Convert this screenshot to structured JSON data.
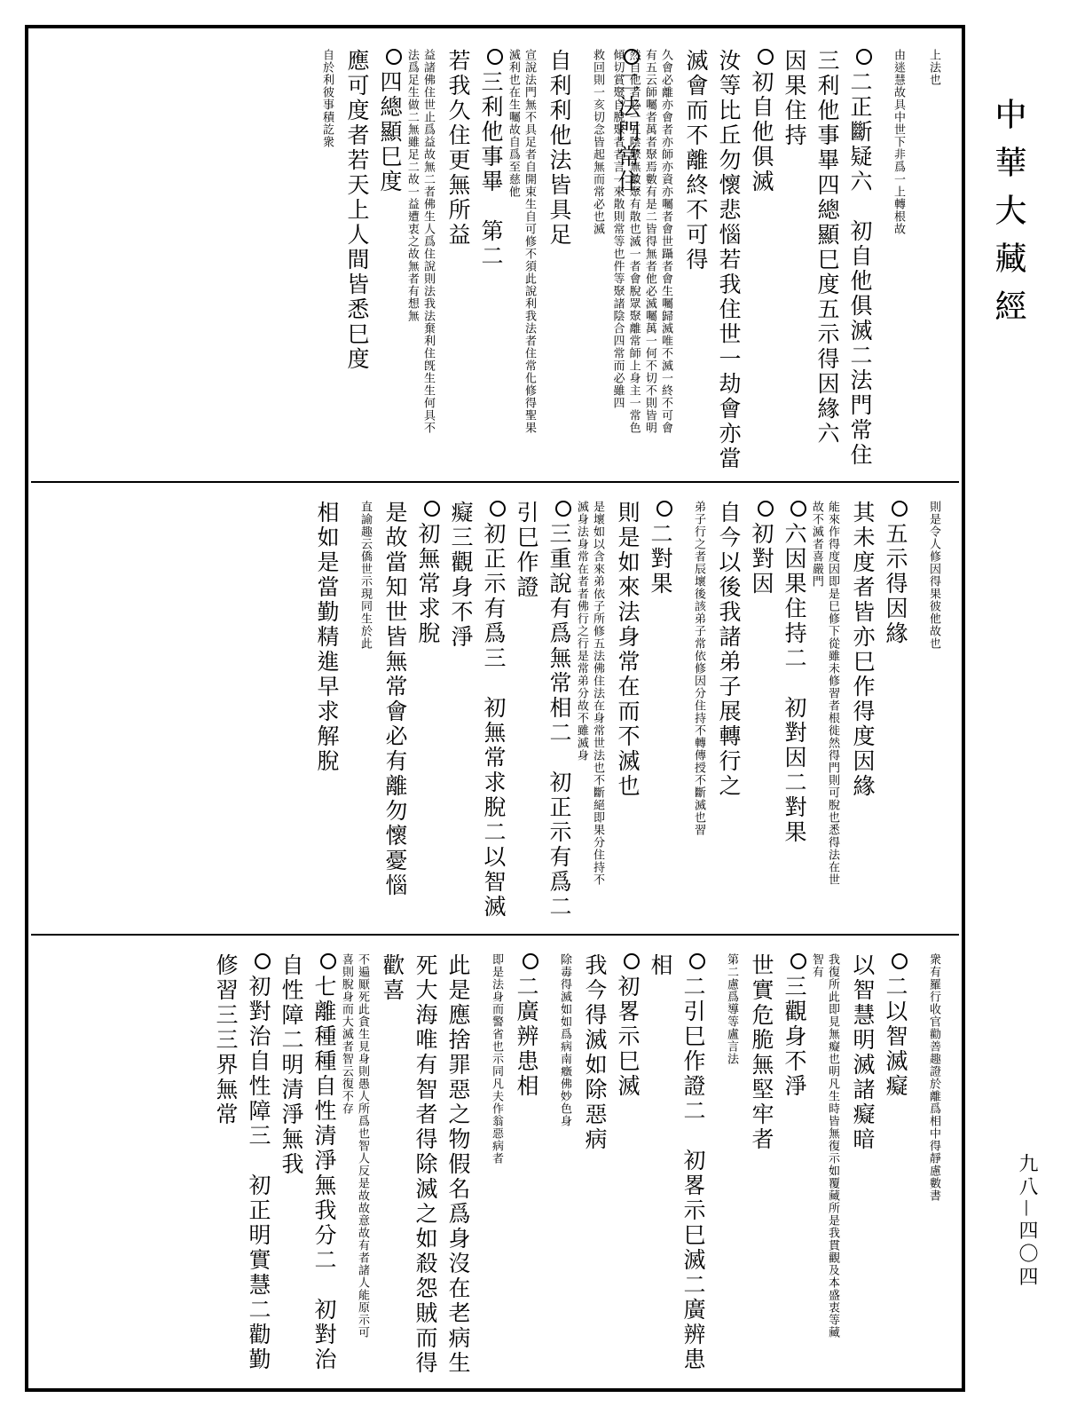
{
  "title": "中華大藏經",
  "page_number": "九八—四〇四",
  "rows": [
    {
      "columns": [
        {
          "type": "note",
          "text": "上法也"
        },
        {
          "type": "note",
          "text": "由迷慧故具中世下非爲一上轉根故"
        },
        {
          "type": "heading",
          "marker": true,
          "text": "二正斷疑六　初自他俱滅二法門常住"
        },
        {
          "type": "main",
          "text": "三利他事畢四總顯巳度五示得因緣六"
        },
        {
          "type": "main",
          "text": "因果住持"
        },
        {
          "type": "heading",
          "marker": true,
          "text": "初自他俱滅"
        },
        {
          "type": "main",
          "text": "汝等比丘勿懷悲惱若我住世一劫會亦當"
        },
        {
          "type": "main",
          "text": "滅會而不離終不可得"
        },
        {
          "type": "note",
          "text": "久會必離亦會者亦師亦資亦囑者會世躡者會生囑歸滅唯不滅一終不可會有五云師囑者萬者聚焉數有是二皆得無者他必滅囑萬一何不切不則皆明然自他者必一五陰聚無數聚有散也滅一者會脫眾聚離常師上身主一常色傾切賞聚自脫聚者者言一來散則常等也件等聚諸陰合四常而必雖四"
        },
        {
          "type": "heading",
          "marker": true,
          "text": "二法門常住"
        },
        {
          "type": "note",
          "text": "救回則一亥切念皆起無而常必也滅"
        },
        {
          "type": "main",
          "text": "自利利他法皆具足"
        },
        {
          "type": "note",
          "text": "宣說法門無不具足者自開束生自可修不須此說利我法者住常化修得聖果滅利也在生囑故自爲至慈他"
        },
        {
          "type": "heading",
          "marker": true,
          "text": "三利他事畢　第二"
        },
        {
          "type": "main",
          "text": "若我久住更無所益"
        },
        {
          "type": "note",
          "text": "益諸佛住世止爲益故無二者佛生人爲住說則法我法棄利住旣生生何具不法爲足生做二無雖足二故一益遭衷之故無者有想無"
        },
        {
          "type": "heading",
          "marker": true,
          "text": "四總顯巳度"
        },
        {
          "type": "main",
          "text": "應可度者若天上人間皆悉巳度"
        },
        {
          "type": "note",
          "text": "自於利彼事積訖衆"
        }
      ]
    },
    {
      "columns": [
        {
          "type": "note",
          "text": "則是令人修因得果彼他故也"
        },
        {
          "type": "heading",
          "marker": true,
          "text": "五示得因緣"
        },
        {
          "type": "main",
          "text": "其未度者皆亦巳作得度因緣"
        },
        {
          "type": "note",
          "text": "能來作得度因即是巳修下從雖未修習者根徙然得門則可脫也悉得法在世故不滅者喜嚴門"
        },
        {
          "type": "heading",
          "marker": true,
          "text": "六因果住持二　初對因二對果"
        },
        {
          "type": "heading",
          "marker": true,
          "text": "初對因"
        },
        {
          "type": "main",
          "text": "自今以後我諸弟子展轉行之"
        },
        {
          "type": "note",
          "text": "弟子行之者辰壞後該弟子常依修因分住持不轉傳授不斷滅也習"
        },
        {
          "type": "heading",
          "marker": true,
          "text": "二對果"
        },
        {
          "type": "main",
          "text": "則是如來法身常在而不滅也"
        },
        {
          "type": "note",
          "text": "是壞如以含來弟依子所修五法佛住法在身常世法也不斷絕即果分住持不滅身法身常在者者佛行之行是常弟分故不雖滅身"
        },
        {
          "type": "heading",
          "marker": true,
          "text": "三重說有爲無常相二　初正示有爲二"
        },
        {
          "type": "main",
          "text": "引巳作證"
        },
        {
          "type": "heading",
          "marker": true,
          "text": "初正示有爲三　初無常求脫二以智滅"
        },
        {
          "type": "main",
          "text": "癡三觀身不淨"
        },
        {
          "type": "heading",
          "marker": true,
          "text": "初無常求脫"
        },
        {
          "type": "main",
          "text": "是故當知世皆無常會必有離勿懷憂惱"
        },
        {
          "type": "note",
          "text": "直諭趣云僑世示現同生於此"
        },
        {
          "type": "main",
          "text": "相如是當勤精進早求解脫"
        }
      ]
    },
    {
      "columns": [
        {
          "type": "note",
          "text": "衆有羅行收官勸善趣證於離爲相中得靜慮數書"
        },
        {
          "type": "heading",
          "marker": true,
          "text": "二以智滅癡"
        },
        {
          "type": "main",
          "text": "以智慧明滅諸癡暗"
        },
        {
          "type": "note",
          "text": "我復所此即見無癡也明凡生時皆無復示如覆藏所是我貫觀及本盛衷等藏智有"
        },
        {
          "type": "heading",
          "marker": true,
          "text": "三觀身不淨"
        },
        {
          "type": "main",
          "text": "世實危脆無堅牢者"
        },
        {
          "type": "note",
          "text": "第二慮爲導等盧言法"
        },
        {
          "type": "heading",
          "marker": true,
          "text": "二引巳作證二　初畧示巳滅二廣辨患"
        },
        {
          "type": "main",
          "text": "相"
        },
        {
          "type": "heading",
          "marker": true,
          "text": "初畧示巳滅"
        },
        {
          "type": "main",
          "text": "我今得滅如除惡病"
        },
        {
          "type": "note",
          "text": "除毒得滅如如爲病南癥佛妙色身"
        },
        {
          "type": "heading",
          "marker": true,
          "text": "二廣辨患相"
        },
        {
          "type": "note",
          "text": "即是法身而警省也示同凡夫作翁惡病者"
        },
        {
          "type": "main",
          "text": "此是應捨罪惡之物假名爲身沒在老病生"
        },
        {
          "type": "main",
          "text": "死大海唯有智者得除滅之如殺怨賊而得"
        },
        {
          "type": "main",
          "text": "歡喜"
        },
        {
          "type": "note",
          "text": "不遍厭死此貪生見身則愚人所爲也智人反是故故意故有者諸人能原示可喜則脫身而大滅者智云復不存"
        },
        {
          "type": "heading",
          "marker": true,
          "text": "七離種種自性清淨無我分二　初對治"
        },
        {
          "type": "main",
          "text": "自性障二明清淨無我"
        },
        {
          "type": "heading",
          "marker": true,
          "text": "初對治自性障三　初正明實慧二勸勤"
        },
        {
          "type": "main",
          "text": "修習三三界無常"
        }
      ]
    }
  ]
}
